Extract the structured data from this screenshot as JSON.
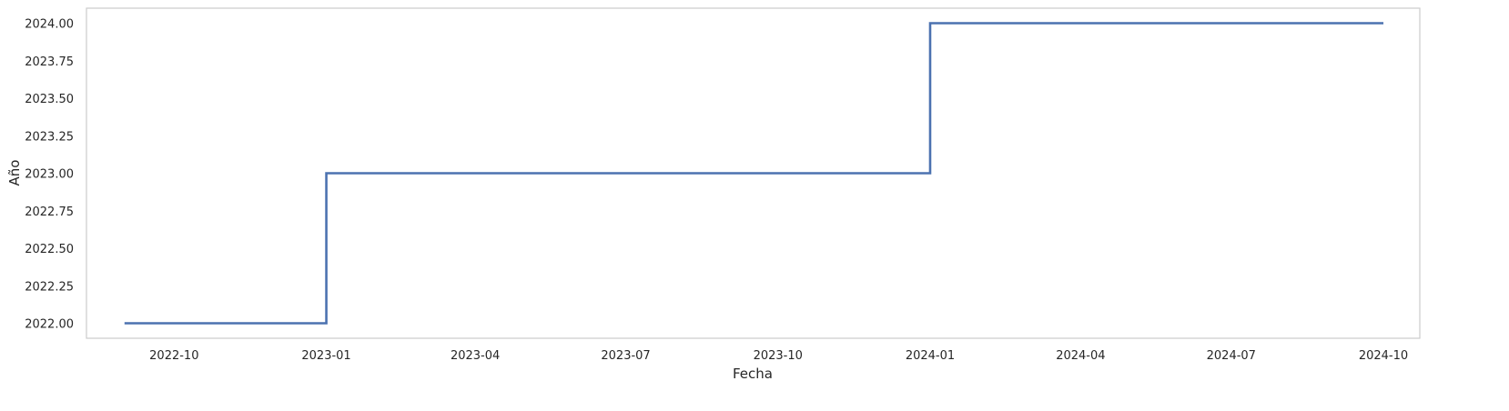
{
  "chart_data": {
    "type": "line",
    "drawstyle": "steps",
    "title": "",
    "xlabel": "Fecha",
    "ylabel": "Año",
    "grid": false,
    "series": [
      {
        "color": "#4c72b0",
        "points": [
          {
            "x": "2022-09-01",
            "y": 2022.0
          },
          {
            "x": "2023-01-01",
            "y": 2023.0
          },
          {
            "x": "2024-01-01",
            "y": 2024.0
          },
          {
            "x": "2024-10-01",
            "y": 2024.0
          }
        ]
      }
    ],
    "xticks": [
      "2022-10",
      "2023-01",
      "2023-04",
      "2023-07",
      "2023-10",
      "2024-01",
      "2024-04",
      "2024-07",
      "2024-10"
    ],
    "yticks": [
      "2022.00",
      "2022.25",
      "2022.50",
      "2022.75",
      "2023.00",
      "2023.25",
      "2023.50",
      "2023.75",
      "2024.00"
    ],
    "xlim": [
      "2022-08-09",
      "2024-10-23"
    ],
    "ylim": [
      2021.9,
      2024.1
    ],
    "frame_color": "#cccccc",
    "text_color": "#262626"
  }
}
